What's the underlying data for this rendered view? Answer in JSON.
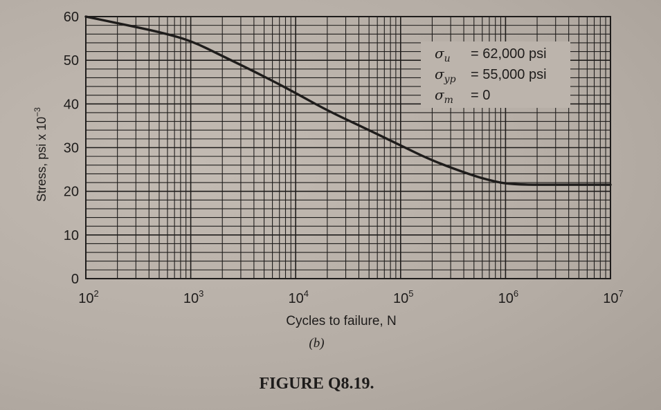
{
  "chart_data": {
    "type": "line",
    "x_scale": "log",
    "xlabel": "Cycles to failure, N",
    "ylabel": "Stress, psi x 10",
    "ylabel_exponent": "−3",
    "xlim": [
      100,
      10000000
    ],
    "ylim": [
      0,
      60
    ],
    "x_ticks": [
      {
        "value": 100,
        "base": "10",
        "exp": "2"
      },
      {
        "value": 1000,
        "base": "10",
        "exp": "3"
      },
      {
        "value": 10000,
        "base": "10",
        "exp": "4"
      },
      {
        "value": 100000,
        "base": "10",
        "exp": "5"
      },
      {
        "value": 1000000,
        "base": "10",
        "exp": "6"
      },
      {
        "value": 10000000,
        "base": "10",
        "exp": "7"
      }
    ],
    "y_ticks": [
      "0",
      "10",
      "20",
      "30",
      "40",
      "50",
      "60"
    ],
    "grid": true,
    "series": [
      {
        "x": [
          100,
          200,
          500,
          1000,
          2000,
          5000,
          10000,
          20000,
          50000,
          100000,
          200000,
          500000,
          800000,
          1000000,
          1500000,
          3000000,
          10000000
        ],
        "y": [
          60,
          58.5,
          56.5,
          54.5,
          51,
          46.3,
          42.5,
          38.5,
          34,
          30.5,
          27,
          23.5,
          22.2,
          21.8,
          21.5,
          21.5,
          21.5
        ]
      }
    ],
    "annotations": [
      {
        "sym": "σ",
        "sub": "u",
        "eq": "= 62,000 psi"
      },
      {
        "sym": "σ",
        "sub": "yp",
        "eq": "= 55,000 psi"
      },
      {
        "sym": "σ",
        "sub": "m",
        "eq": "= 0"
      }
    ]
  },
  "caption": {
    "subfigure": "(b)",
    "title": "FIGURE Q8.19."
  },
  "colors": {
    "ink": "#1e1c1b",
    "paper": "#b9b1a9"
  }
}
